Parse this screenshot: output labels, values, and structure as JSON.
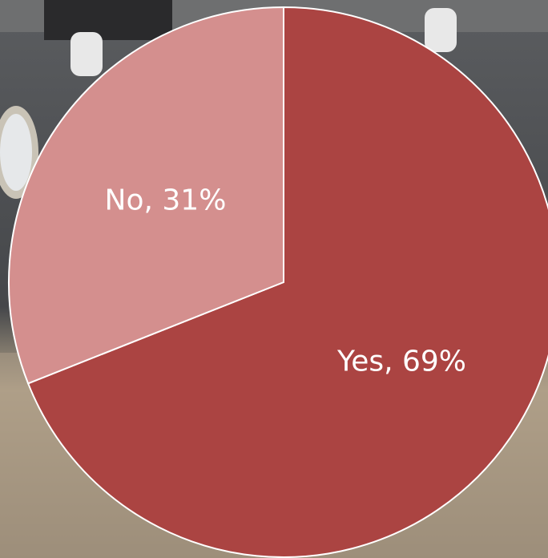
{
  "chart_data": {
    "type": "pie",
    "values": [
      69,
      31
    ],
    "value_labels": [
      "Yes, 69%",
      "No, 31%"
    ],
    "colors": [
      "#ab4442",
      "#d48f8e"
    ]
  }
}
